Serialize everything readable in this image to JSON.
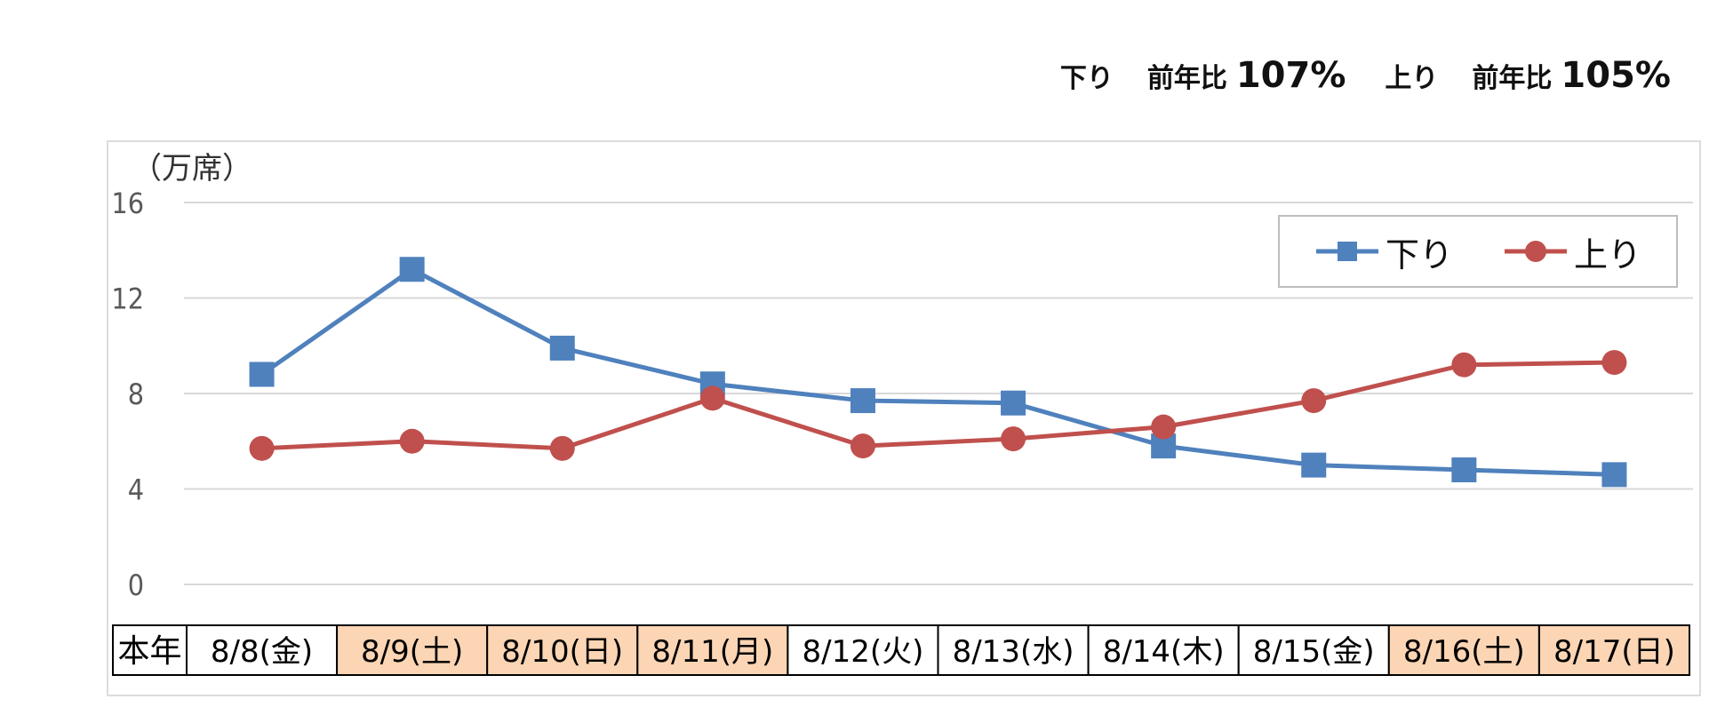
{
  "summary": {
    "down_label": "下り",
    "down_ratio_label": "前年比",
    "down_ratio_value": "107%",
    "up_label": "上り",
    "up_ratio_label": "前年比",
    "up_ratio_value": "105%"
  },
  "chart_data": {
    "type": "line",
    "unit_label": "（万席）",
    "ylim": [
      0,
      16
    ],
    "yticks": [
      "16",
      "12",
      "8",
      "4",
      "0"
    ],
    "row_header": "本年",
    "categories": [
      "8/8(金)",
      "8/9(土)",
      "8/10(日)",
      "8/11(月)",
      "8/12(火)",
      "8/13(水)",
      "8/14(木)",
      "8/15(金)",
      "8/16(土)",
      "8/17(日)"
    ],
    "highlighted": [
      false,
      true,
      true,
      true,
      false,
      false,
      false,
      false,
      true,
      true
    ],
    "highlight_color": "#fcd5b4",
    "grid": true,
    "legend_position": "top-right",
    "series": [
      {
        "name": "下り",
        "color": "#4f81bd",
        "marker": "square",
        "values": [
          8.8,
          13.2,
          9.9,
          8.4,
          7.7,
          7.6,
          5.8,
          5.0,
          4.8,
          4.6
        ]
      },
      {
        "name": "上り",
        "color": "#c0504d",
        "marker": "circle",
        "values": [
          5.7,
          6.0,
          5.7,
          7.8,
          5.8,
          6.1,
          6.6,
          7.7,
          9.2,
          9.3
        ]
      }
    ]
  }
}
